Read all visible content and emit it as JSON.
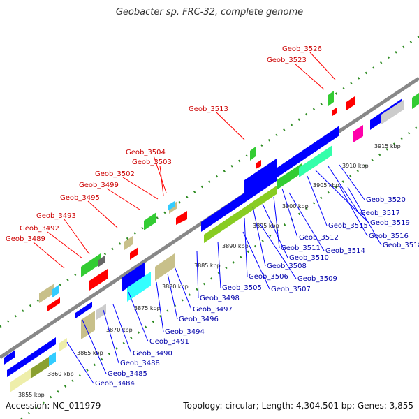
{
  "title": "Geobacter sp. FRC-32, complete genome",
  "footer": {
    "accession": "Accession: NC_011979",
    "stats": "Topology: circular; Length: 4,304,501 bp; Genes: 3,855"
  },
  "scale_labels": [
    "3855 kbp",
    "3860 kbp",
    "3865 kbp",
    "3870 kbp",
    "3875 kbp",
    "3880 kbp",
    "3885 kbp",
    "3890 kbp",
    "3895 kbp",
    "3900 kbp",
    "3905 kbp",
    "3910 kbp",
    "3915 kbp"
  ],
  "top_labels": [
    "Geob_3526",
    "Geob_3523",
    "Geob_3513",
    "Geob_3504",
    "Geob_3503",
    "Geob_3502",
    "Geob_3499",
    "Geob_3495",
    "Geob_3493",
    "Geob_3492",
    "Geob_3489"
  ],
  "bottom_labels": [
    "Geob_3520",
    "Geob_3517",
    "Geob_3519",
    "Geob_3515",
    "Geob_3516",
    "Geob_3518",
    "Geob_3512",
    "Geob_3514",
    "Geob_3511",
    "Geob_3510",
    "Geob_3508",
    "Geob_3509",
    "Geob_3506",
    "Geob_3507",
    "Geob_3505",
    "Geob_3498",
    "Geob_3497",
    "Geob_3496",
    "Geob_3494",
    "Geob_3491",
    "Geob_3490",
    "Geob_3488",
    "Geob_3485",
    "Geob_3484"
  ],
  "colors": {
    "forward_cds": "#ff0000",
    "reverse_cds": "#0000ff",
    "gc_high": "#33cc33",
    "gc_low": "#b5b58a",
    "backbone": "#888888",
    "ticks": "#2e8b22",
    "top_label_text": "#cc0000",
    "bottom_label_text": "#0000aa"
  }
}
